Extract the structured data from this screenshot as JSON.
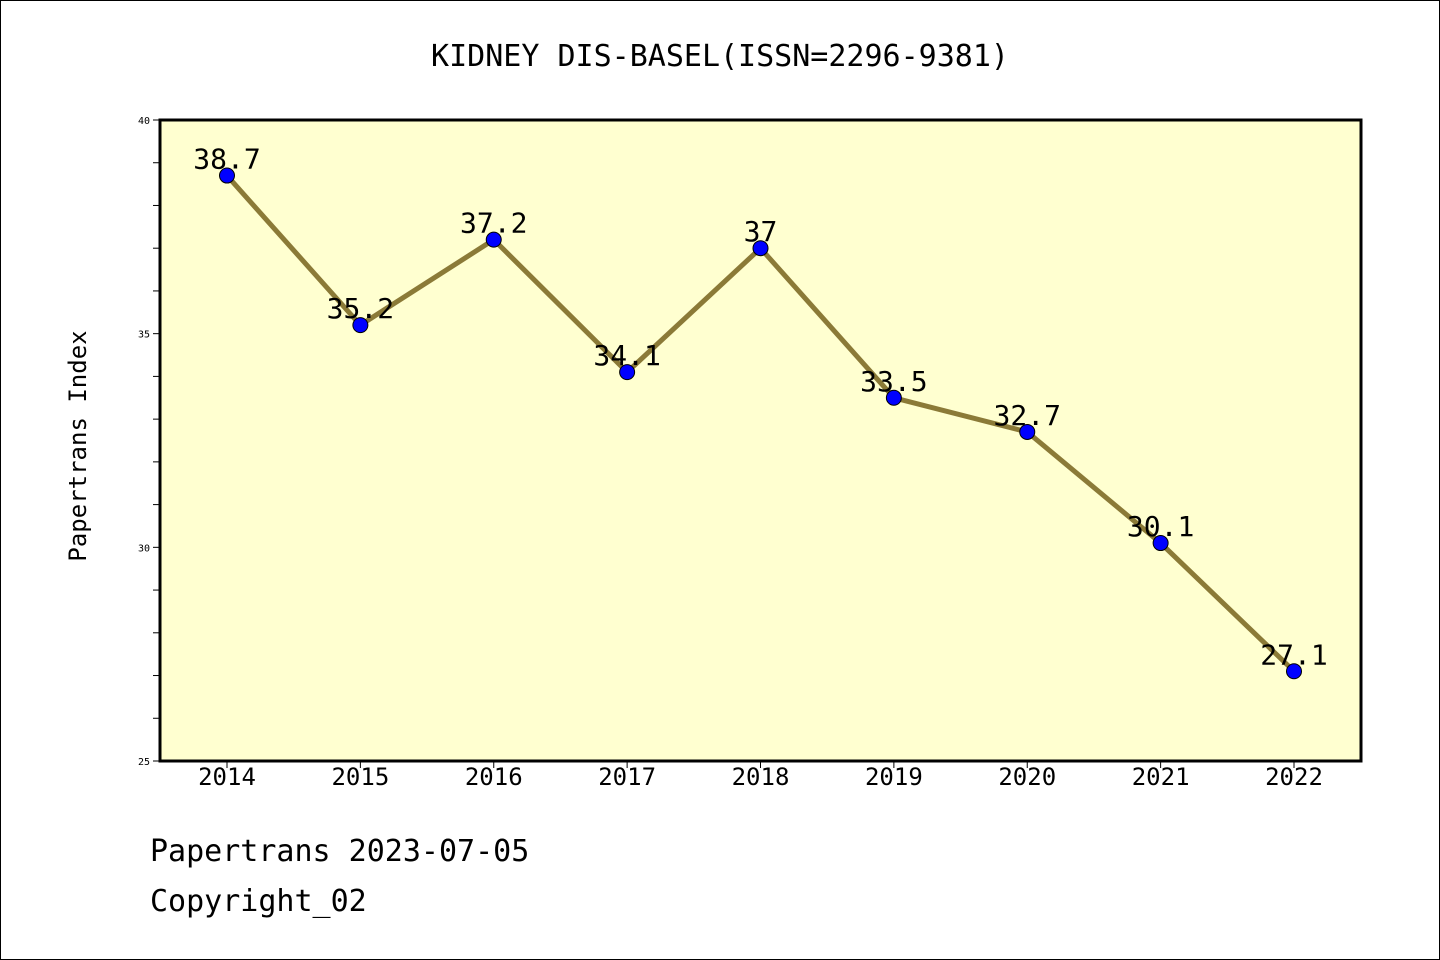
{
  "chart_data": {
    "type": "line",
    "title": "KIDNEY DIS-BASEL(ISSN=2296-9381)",
    "xlabel": "",
    "ylabel": "Papertrans Index",
    "categories": [
      "2014",
      "2015",
      "2016",
      "2017",
      "2018",
      "2019",
      "2020",
      "2021",
      "2022"
    ],
    "series": [
      {
        "values": [
          38.7,
          35.2,
          37.2,
          34.1,
          37,
          33.5,
          32.7,
          30.1,
          27.1
        ],
        "labels": [
          "38.7",
          "35.2",
          "37.2",
          "34.1",
          "37",
          "33.5",
          "32.7",
          "30.1",
          "27.1"
        ],
        "line_color": "#8b7a37",
        "marker_color": "#0000ff"
      }
    ],
    "ylim": [
      25,
      40
    ],
    "yticks": [
      "25",
      "30",
      "35",
      "40"
    ],
    "plot_background": "#ffffd0",
    "grid": false,
    "legend": "none"
  },
  "footer": {
    "date_line": "Papertrans 2023-07-05",
    "copyright": "Copyright_02"
  }
}
